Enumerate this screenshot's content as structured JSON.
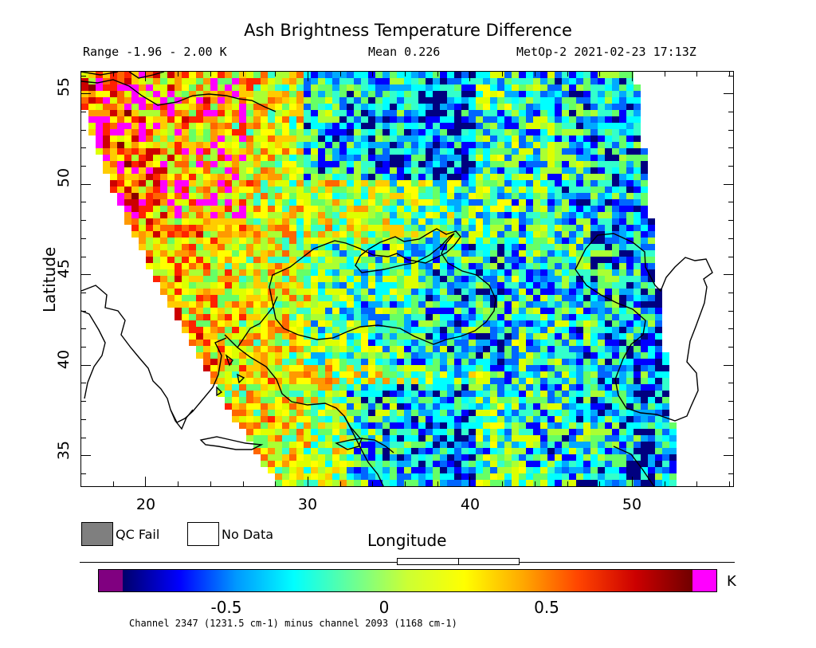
{
  "header": {
    "title": "Ash Brightness Temperature Difference",
    "range": "Range -1.96 - 2.00 K",
    "mean": "Mean 0.226",
    "satellite_time": "MetOp-2 2021-02-23 17:13Z"
  },
  "axes": {
    "x_title": "Longitude",
    "y_title": "Latitude",
    "x_ticks": [
      "20",
      "30",
      "40",
      "50"
    ],
    "y_ticks": [
      "35",
      "40",
      "45",
      "50",
      "55"
    ]
  },
  "legend": {
    "qc_fail": "QC Fail",
    "no_data": "No Data",
    "qc_fail_color": "#7f7f7f",
    "no_data_color": "#ffffff"
  },
  "colorbar": {
    "ticks": [
      "-0.5",
      "0",
      "0.5"
    ],
    "unit": "K",
    "under_color": "#800080",
    "over_color": "#ff00ff"
  },
  "footnote": "Channel 2347 (1231.5 cm-1) minus channel 2093 (1168 cm-1)"
}
